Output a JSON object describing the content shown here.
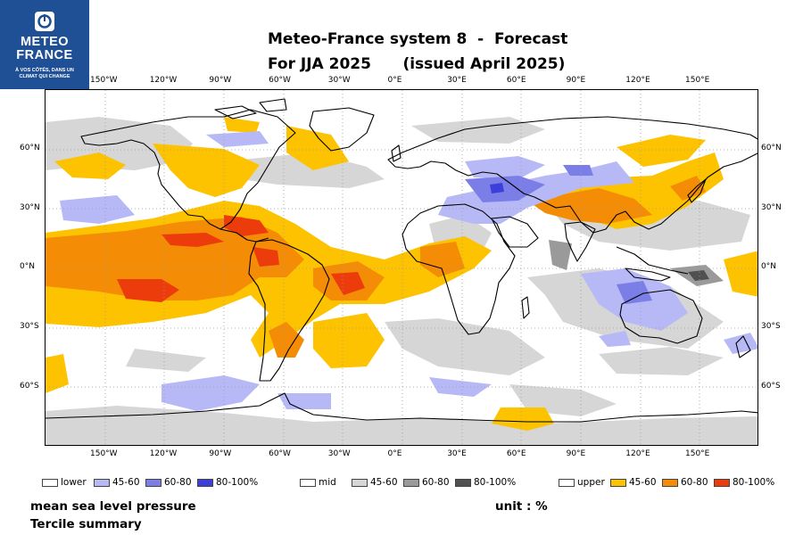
{
  "logo": {
    "name_line1": "METEO",
    "name_line2": "FRANCE",
    "tag_line1": "À VOS CÔTÉS, DANS UN",
    "tag_line2": "CLIMAT QUI CHANGE"
  },
  "title": {
    "line1": "Meteo-France system 8  -  Forecast",
    "line2": "For JJA 2025      (issued April 2025)"
  },
  "axes": {
    "lon_labels": [
      "150°W",
      "120°W",
      "90°W",
      "60°W",
      "30°W",
      "0°E",
      "30°E",
      "60°E",
      "90°E",
      "120°E",
      "150°E"
    ],
    "lat_labels_left": [
      "60°N",
      "30°N",
      "0°N",
      "30°S",
      "60°S"
    ],
    "lat_labels_right": [
      "60°N",
      "30°N",
      "0°N",
      "30°S",
      "60°S"
    ]
  },
  "legend": {
    "groups": [
      {
        "category": "lower",
        "bins": [
          "45-60",
          "60-80",
          "80-100%"
        ],
        "colors": [
          "#b7b9f6",
          "#7c7ee8",
          "#3c3fd8"
        ]
      },
      {
        "category": "mid",
        "bins": [
          "45-60",
          "60-80",
          "80-100%"
        ],
        "colors": [
          "#d6d6d6",
          "#9a9a9a",
          "#505050"
        ]
      },
      {
        "category": "upper",
        "bins": [
          "45-60",
          "60-80",
          "80-100%"
        ],
        "colors": [
          "#fdc300",
          "#f48c06",
          "#ed3c0c"
        ]
      }
    ]
  },
  "footer": {
    "variable": "mean sea level pressure",
    "product": "Tercile summary",
    "unit": "unit : %"
  },
  "colors": {
    "logo_bg": "#1f4f95",
    "upper_45": "#fdc300",
    "upper_60": "#f48c06",
    "upper_80": "#ed3c0c",
    "lower_45": "#b7b9f6",
    "lower_60": "#7c7ee8",
    "lower_80": "#3c3fd8",
    "mid_45": "#d6d6d6",
    "mid_60": "#9a9a9a",
    "mid_80": "#505050"
  }
}
